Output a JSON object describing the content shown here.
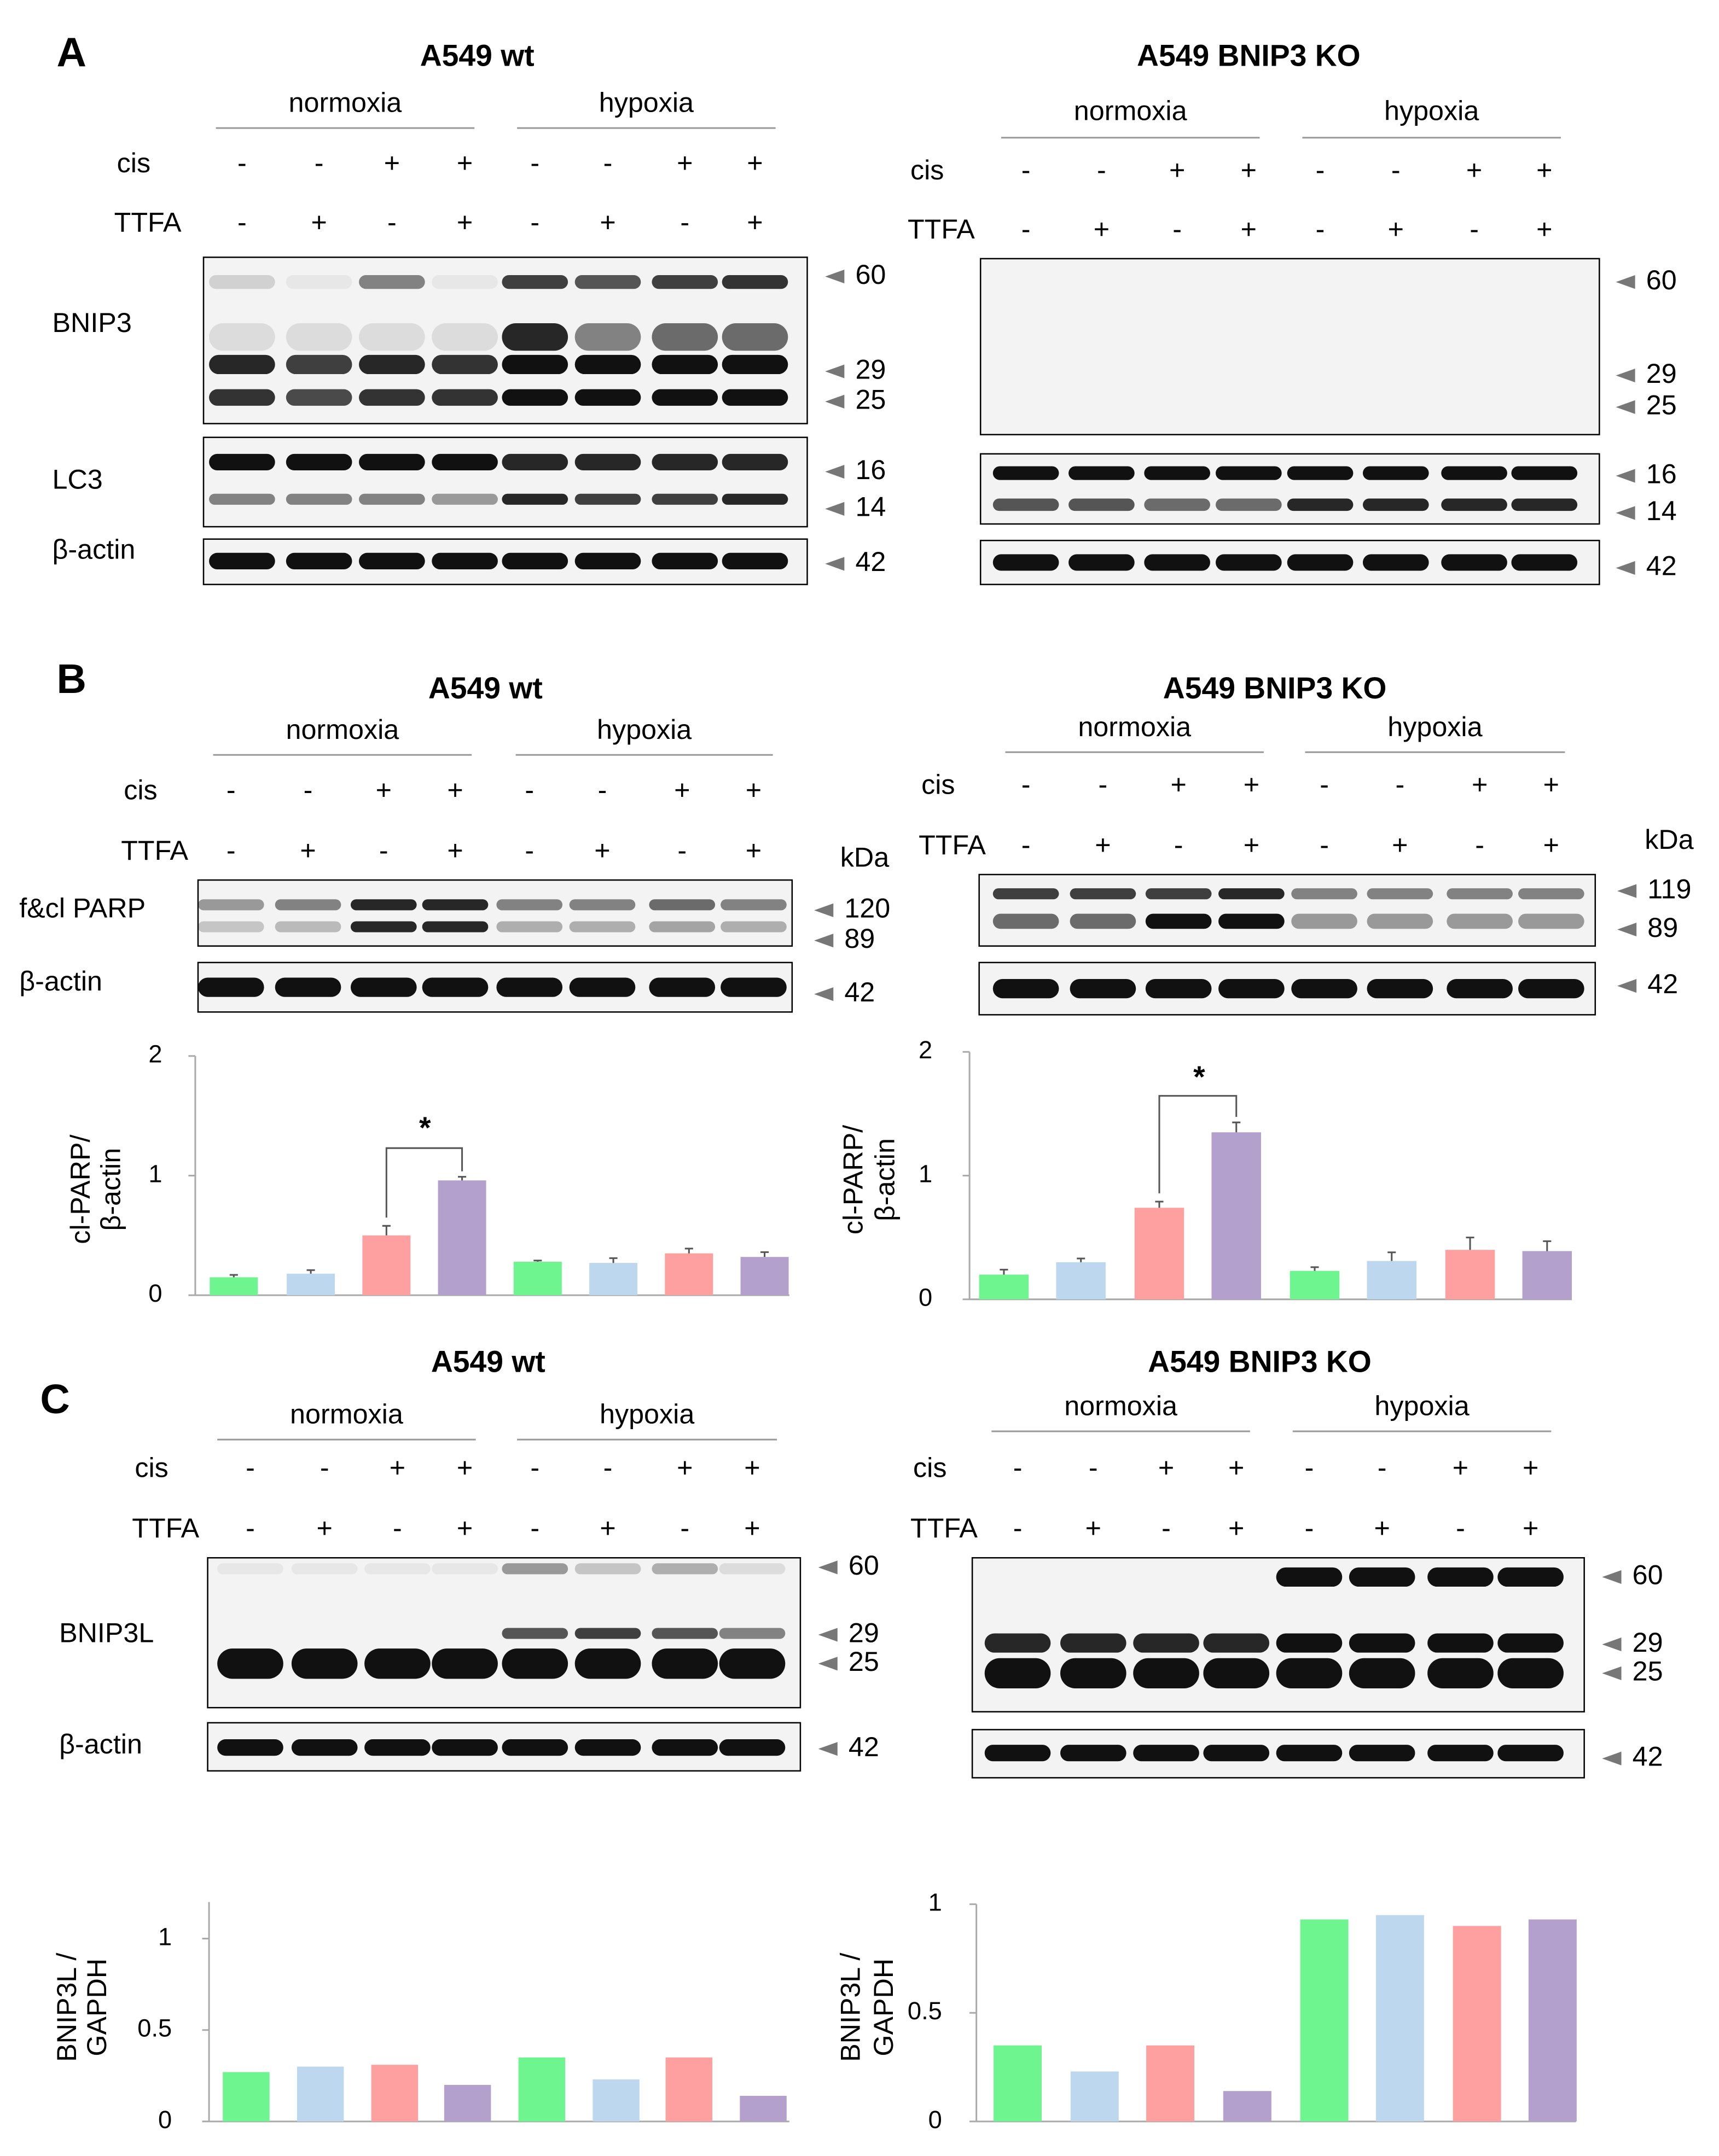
{
  "panels": [
    {
      "letter": "A",
      "blots": [
        {
          "title": "A549 wt",
          "conditions": [
            "normoxia",
            "hypoxia"
          ],
          "treatments": [
            {
              "label": "cis",
              "signs": [
                "-",
                "-",
                "+",
                "+",
                "-",
                "-",
                "+",
                "+"
              ]
            },
            {
              "label": "TTFA",
              "signs": [
                "-",
                "+",
                "-",
                "+",
                "-",
                "+",
                "-",
                "+"
              ]
            }
          ],
          "rows": [
            {
              "label": "BNIP3",
              "markers": [
                60,
                29,
                25
              ]
            },
            {
              "label": "LC3",
              "markers": [
                16,
                14
              ]
            },
            {
              "label": "β-actin",
              "markers": [
                42
              ]
            }
          ]
        },
        {
          "title": "A549 BNIP3 KO",
          "conditions": [
            "normoxia",
            "hypoxia"
          ],
          "treatments": [
            {
              "label": "cis",
              "signs": [
                "-",
                "-",
                "+",
                "+",
                "-",
                "-",
                "+",
                "+"
              ]
            },
            {
              "label": "TTFA",
              "signs": [
                "-",
                "+",
                "-",
                "+",
                "-",
                "+",
                "-",
                "+"
              ]
            }
          ],
          "rows": [
            {
              "markers": [
                60,
                29,
                25
              ]
            },
            {
              "markers": [
                16,
                14
              ]
            },
            {
              "markers": [
                42
              ]
            }
          ]
        }
      ]
    },
    {
      "letter": "B",
      "blots": [
        {
          "title": "A549 wt",
          "conditions": [
            "normoxia",
            "hypoxia"
          ],
          "unit": "kDa",
          "treatments": [
            {
              "label": "cis",
              "signs": [
                "-",
                "-",
                "+",
                "+",
                "-",
                "-",
                "+",
                "+"
              ]
            },
            {
              "label": "TTFA",
              "signs": [
                "-",
                "+",
                "-",
                "+",
                "-",
                "+",
                "-",
                "+"
              ]
            }
          ],
          "rows": [
            {
              "label": "f&cl PARP",
              "markers": [
                120,
                89
              ]
            },
            {
              "label": "β-actin",
              "markers": [
                42
              ]
            }
          ]
        },
        {
          "title": "A549 BNIP3 KO",
          "conditions": [
            "normoxia",
            "hypoxia"
          ],
          "unit": "kDa",
          "treatments": [
            {
              "label": "cis",
              "signs": [
                "-",
                "-",
                "+",
                "+",
                "-",
                "-",
                "+",
                "+"
              ]
            },
            {
              "label": "TTFA",
              "signs": [
                "-",
                "+",
                "-",
                "+",
                "-",
                "+",
                "-",
                "+"
              ]
            }
          ],
          "rows": [
            {
              "markers": [
                119,
                89
              ]
            },
            {
              "markers": [
                42
              ]
            }
          ]
        }
      ]
    },
    {
      "letter": "C",
      "blots": [
        {
          "title": "A549 wt",
          "conditions": [
            "normoxia",
            "hypoxia"
          ],
          "treatments": [
            {
              "label": "cis",
              "signs": [
                "-",
                "-",
                "+",
                "+",
                "-",
                "-",
                "+",
                "+"
              ]
            },
            {
              "label": "TTFA",
              "signs": [
                "-",
                "+",
                "-",
                "+",
                "-",
                "+",
                "-",
                "+"
              ]
            }
          ],
          "rows": [
            {
              "label": "BNIP3L",
              "markers": [
                60,
                29,
                25
              ]
            },
            {
              "label": "β-actin",
              "markers": [
                42
              ]
            }
          ]
        },
        {
          "title": "A549 BNIP3 KO",
          "conditions": [
            "normoxia",
            "hypoxia"
          ],
          "treatments": [
            {
              "label": "cis",
              "signs": [
                "-",
                "-",
                "+",
                "+",
                "-",
                "-",
                "+",
                "+"
              ]
            },
            {
              "label": "TTFA",
              "signs": [
                "-",
                "+",
                "-",
                "+",
                "-",
                "+",
                "-",
                "+"
              ]
            }
          ],
          "rows": [
            {
              "markers": [
                60,
                29,
                25
              ]
            },
            {
              "markers": [
                42
              ]
            }
          ]
        }
      ]
    }
  ],
  "chart_data": [
    {
      "type": "bar",
      "y_label": [
        "cl-PARP/",
        "β-actin"
      ],
      "values": [
        0.15,
        0.18,
        0.5,
        0.96,
        0.28,
        0.27,
        0.35,
        0.32
      ],
      "errors": [
        0.02,
        0.03,
        0.08,
        0.03,
        0.01,
        0.04,
        0.04,
        0.04
      ],
      "colors": [
        "#6ef590",
        "#bdd7ee",
        "#ffa0a0",
        "#b4a0cc",
        "#6ef590",
        "#bdd7ee",
        "#ffa0a0",
        "#b4a0cc"
      ],
      "ylim": [
        0,
        2
      ],
      "yticks": [
        0,
        1,
        2
      ],
      "annotation": "*"
    },
    {
      "type": "bar",
      "y_label": [
        "cl-PARP/",
        "β-actin"
      ],
      "values": [
        0.2,
        0.3,
        0.74,
        1.35,
        0.23,
        0.31,
        0.4,
        0.39
      ],
      "errors": [
        0.04,
        0.03,
        0.05,
        0.08,
        0.03,
        0.07,
        0.1,
        0.08
      ],
      "colors": [
        "#6ef590",
        "#bdd7ee",
        "#ffa0a0",
        "#b4a0cc",
        "#6ef590",
        "#bdd7ee",
        "#ffa0a0",
        "#b4a0cc"
      ],
      "ylim": [
        0,
        2
      ],
      "yticks": [
        0,
        1,
        2
      ],
      "annotation": "*"
    },
    {
      "type": "bar",
      "y_label": [
        "BNIP3L /",
        "GAPDH"
      ],
      "values": [
        0.27,
        0.3,
        0.31,
        0.2,
        0.35,
        0.23,
        0.35,
        0.14
      ],
      "colors": [
        "#6ef590",
        "#bdd7ee",
        "#ffa0a0",
        "#b4a0cc",
        "#6ef590",
        "#bdd7ee",
        "#ffa0a0",
        "#b4a0cc"
      ],
      "ylim": [
        0,
        1.2
      ],
      "yticks": [
        0,
        0.5,
        1
      ]
    },
    {
      "type": "bar",
      "y_label": [
        "BNIP3L /",
        "GAPDH"
      ],
      "values": [
        0.35,
        0.23,
        0.35,
        0.14,
        0.93,
        0.95,
        0.9,
        0.93
      ],
      "colors": [
        "#6ef590",
        "#bdd7ee",
        "#ffa0a0",
        "#b4a0cc",
        "#6ef590",
        "#bdd7ee",
        "#ffa0a0",
        "#b4a0cc"
      ],
      "ylim": [
        0,
        1
      ],
      "yticks": [
        0,
        0.5,
        1
      ]
    }
  ]
}
